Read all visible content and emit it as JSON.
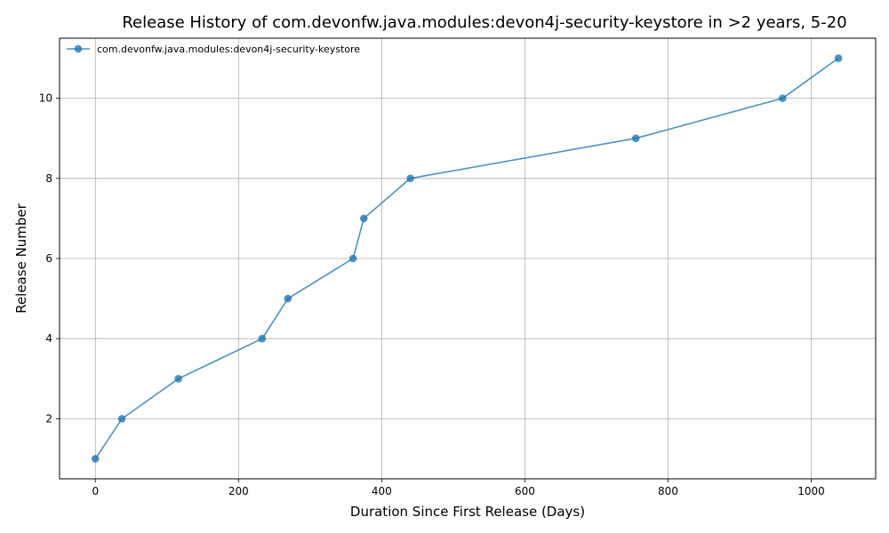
{
  "chart_data": {
    "type": "line",
    "title": "Release History of com.devonfw.java.modules:devon4j-security-keystore in >2 years, 5-20",
    "xlabel": "Duration Since First Release (Days)",
    "ylabel": "Release Number",
    "xlim": [
      -50,
      1090
    ],
    "ylim": [
      0.5,
      11.5
    ],
    "xticks": [
      0,
      200,
      400,
      600,
      800,
      1000
    ],
    "yticks": [
      2,
      4,
      6,
      8,
      10
    ],
    "grid": true,
    "legend_position": "top-left",
    "series": [
      {
        "name": "com.devonfw.java.modules:devon4j-security-keystore",
        "color": "#1f77b4",
        "marker": "circle",
        "x": [
          0,
          37,
          116,
          233,
          269,
          360,
          375,
          440,
          755,
          960,
          1038
        ],
        "y": [
          1,
          2,
          3,
          4,
          5,
          6,
          7,
          8,
          9,
          10,
          11
        ]
      }
    ]
  }
}
